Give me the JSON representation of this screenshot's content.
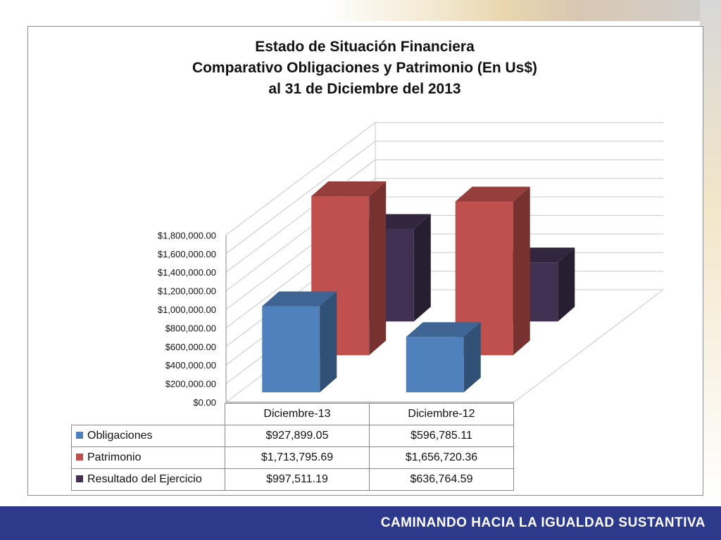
{
  "chart_data": {
    "type": "bar",
    "title_lines": [
      "Estado de Situación Financiera",
      "Comparativo Obligaciones y Patrimonio (En Us$)",
      "al 31 de Diciembre del 2013"
    ],
    "categories": [
      "Diciembre-13",
      "Diciembre-12"
    ],
    "series": [
      {
        "name": "Obligaciones",
        "color": "#4f81bd",
        "values": [
          927899.05,
          596785.11
        ],
        "labels": [
          "$927,899.05",
          "$596,785.11"
        ]
      },
      {
        "name": "Patrimonio",
        "color": "#c0504d",
        "values": [
          1713795.69,
          1656720.36
        ],
        "labels": [
          "$1,713,795.69",
          "$1,656,720.36"
        ]
      },
      {
        "name": "Resultado del Ejercicio",
        "color": "#403151",
        "values": [
          997511.19,
          636764.59
        ],
        "labels": [
          "$997,511.19",
          "$636,764.59"
        ]
      }
    ],
    "y_ticks": [
      0,
      200000,
      400000,
      600000,
      800000,
      1000000,
      1200000,
      1400000,
      1600000,
      1800000
    ],
    "y_tick_labels": [
      "$0.00",
      "$200,000.00",
      "$400,000.00",
      "$600,000.00",
      "$800,000.00",
      "$1,000,000.00",
      "$1,200,000.00",
      "$1,400,000.00",
      "$1,600,000.00",
      "$1,800,000.00"
    ],
    "ylim": [
      0,
      1800000
    ],
    "grid": true,
    "legend": "data-table",
    "style": "3d-clustered-column"
  },
  "footer": {
    "slogan": "CAMINANDO HACIA LA IGUALDAD SUSTANTIVA"
  }
}
